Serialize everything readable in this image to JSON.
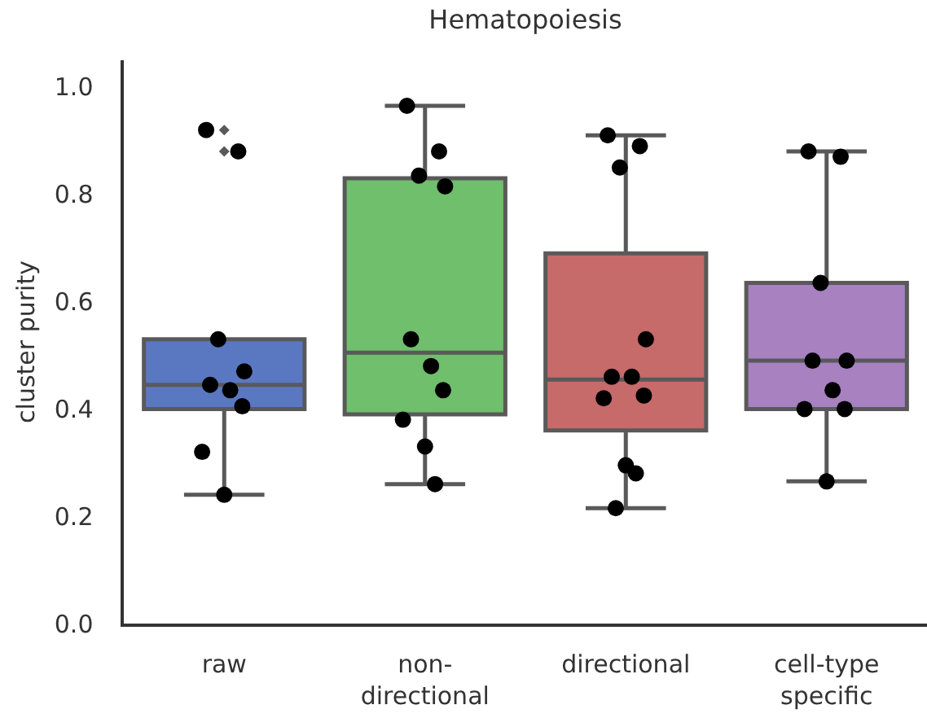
{
  "chart_data": {
    "type": "box",
    "title": "Hematopoiesis",
    "ylabel": "cluster purity",
    "categories": [
      "raw",
      "non-\ndirectional",
      "directional",
      "cell-type\nspecific"
    ],
    "colors": [
      "#5a78c2",
      "#6fbf6c",
      "#c76a6a",
      "#a781c0"
    ],
    "boxes": [
      {
        "low": 0.24,
        "q1": 0.4,
        "median": 0.445,
        "q3": 0.53,
        "high": 0.53,
        "outliers": [
          0.88,
          0.92
        ]
      },
      {
        "low": 0.26,
        "q1": 0.39,
        "median": 0.505,
        "q3": 0.83,
        "high": 0.965
      },
      {
        "low": 0.215,
        "q1": 0.36,
        "median": 0.455,
        "q3": 0.69,
        "high": 0.91
      },
      {
        "low": 0.265,
        "q1": 0.4,
        "median": 0.49,
        "q3": 0.635,
        "high": 0.88
      }
    ],
    "series": [
      {
        "type": "scatter",
        "color": "#000000",
        "x": [
          "raw",
          "raw",
          "raw",
          "raw",
          "raw",
          "raw",
          "raw",
          "raw",
          "raw",
          "non-\ndirectional",
          "non-\ndirectional",
          "non-\ndirectional",
          "non-\ndirectional",
          "non-\ndirectional",
          "non-\ndirectional",
          "non-\ndirectional",
          "non-\ndirectional",
          "non-\ndirectional",
          "non-\ndirectional",
          "directional",
          "directional",
          "directional",
          "directional",
          "directional",
          "directional",
          "directional",
          "directional",
          "directional",
          "directional",
          "directional",
          "cell-type\nspecific",
          "cell-type\nspecific",
          "cell-type\nspecific",
          "cell-type\nspecific",
          "cell-type\nspecific",
          "cell-type\nspecific",
          "cell-type\nspecific",
          "cell-type\nspecific",
          "cell-type\nspecific"
        ],
        "values": [
          0.92,
          0.88,
          0.53,
          0.47,
          0.445,
          0.435,
          0.405,
          0.32,
          0.24,
          0.965,
          0.88,
          0.835,
          0.815,
          0.53,
          0.48,
          0.435,
          0.38,
          0.33,
          0.26,
          0.91,
          0.89,
          0.85,
          0.53,
          0.46,
          0.46,
          0.425,
          0.42,
          0.295,
          0.28,
          0.215,
          0.88,
          0.87,
          0.635,
          0.49,
          0.49,
          0.435,
          0.4,
          0.4,
          0.265
        ]
      }
    ],
    "marker": "circle",
    "ylim": [
      0,
      1.05
    ],
    "yticks": [
      {
        "value": 0,
        "label": "0.0"
      },
      0.2,
      0.4,
      0.6,
      0.8,
      {
        "value": 1,
        "label": "1.0"
      }
    ]
  }
}
